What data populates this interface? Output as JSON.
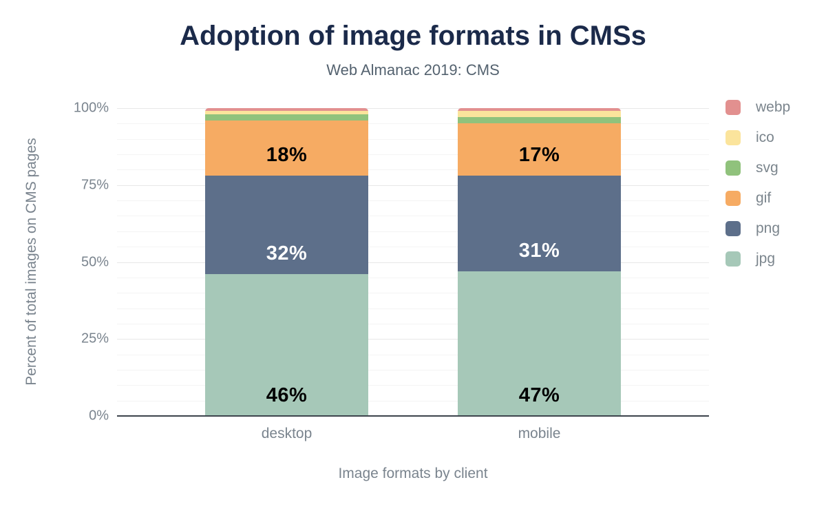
{
  "title": "Adoption of image formats in CMSs",
  "subtitle": "Web Almanac 2019: CMS",
  "chart_data": {
    "type": "bar",
    "stacked": true,
    "title": "Adoption of image formats in CMSs",
    "subtitle": "Web Almanac 2019: CMS",
    "categories": [
      "desktop",
      "mobile"
    ],
    "xlabel": "Image formats by client",
    "ylabel": "Percent of total images on CMS pages",
    "ylim": [
      0,
      100
    ],
    "yticks": [
      "0%",
      "25%",
      "50%",
      "75%",
      "100%"
    ],
    "grid": "horizontal, minor every 5%, major every 25%",
    "legend_position": "right",
    "legend_order": [
      "webp",
      "ico",
      "svg",
      "gif",
      "png",
      "jpg"
    ],
    "series": [
      {
        "name": "jpg",
        "color": "#a6c8b8",
        "values": [
          46,
          47
        ],
        "label_color": "#000000"
      },
      {
        "name": "png",
        "color": "#5d6f8a",
        "values": [
          32,
          31
        ],
        "label_color": "#ffffff"
      },
      {
        "name": "gif",
        "color": "#f6ab63",
        "values": [
          18,
          17
        ],
        "label_color": "#000000"
      },
      {
        "name": "svg",
        "color": "#90c27c",
        "values": [
          2,
          2
        ]
      },
      {
        "name": "ico",
        "color": "#fbe49c",
        "values": [
          1,
          2
        ]
      },
      {
        "name": "webp",
        "color": "#e2908f",
        "values": [
          1,
          1
        ]
      }
    ],
    "data_labels": {
      "desktop": {
        "jpg": "46%",
        "png": "32%",
        "gif": "18%"
      },
      "mobile": {
        "jpg": "47%",
        "png": "31%",
        "gif": "17%"
      }
    }
  },
  "colors": {
    "title": "#1b2a4a",
    "subtitle": "#54626f",
    "axis_text": "#7a848e",
    "axis_line": "#3c434b"
  }
}
